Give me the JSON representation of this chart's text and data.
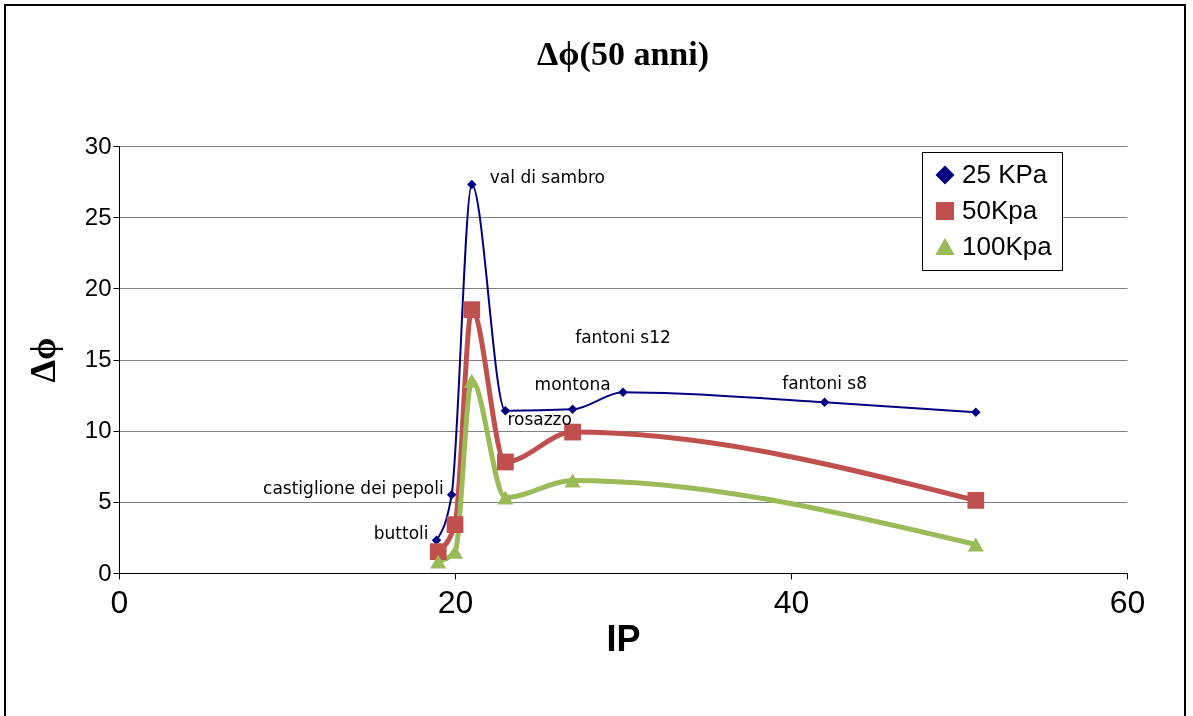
{
  "chart_data": {
    "type": "line",
    "title": "Δϕ(50 anni)",
    "xlabel": "IP",
    "ylabel": "Δϕ",
    "xlim": [
      0,
      60
    ],
    "xticks": [
      0,
      20,
      40,
      60
    ],
    "ylim": [
      0,
      30
    ],
    "yticks": [
      0,
      5,
      10,
      15,
      20,
      25,
      30
    ],
    "grid": "y",
    "legend": "top right",
    "series": [
      {
        "name": "25 KPa",
        "color": "#000080",
        "marker": "diamond",
        "x": [
          18.9,
          19.8,
          21,
          23,
          27,
          30,
          42,
          51
        ],
        "values": [
          2.3,
          5.5,
          27.3,
          11.4,
          11.5,
          12.7,
          12.0,
          11.3
        ]
      },
      {
        "name": "50Kpa",
        "color": "#c0504d",
        "marker": "square",
        "x": [
          19,
          20,
          21,
          23,
          27,
          51
        ],
        "values": [
          1.5,
          3.4,
          18.5,
          7.8,
          9.9,
          5.1
        ]
      },
      {
        "name": "100Kpa",
        "color": "#9bbb59",
        "marker": "triangle",
        "x": [
          19,
          20,
          21,
          23,
          27,
          51
        ],
        "values": [
          0.8,
          1.5,
          13.5,
          5.3,
          6.5,
          2.0
        ]
      }
    ],
    "annotations": [
      {
        "text": "val di sambro",
        "x": 21,
        "y": 27.3
      },
      {
        "text": "castiglione dei pepoli",
        "x": 19.8,
        "y": 5.5
      },
      {
        "text": "buttoli",
        "x": 18.9,
        "y": 2.3
      },
      {
        "text": "rosazzo",
        "x": 23,
        "y": 11.4
      },
      {
        "text": "montona",
        "x": 27,
        "y": 11.5
      },
      "fantoni s12",
      {
        "text": "fantoni s8",
        "x": 42,
        "y": 12.0
      }
    ]
  }
}
